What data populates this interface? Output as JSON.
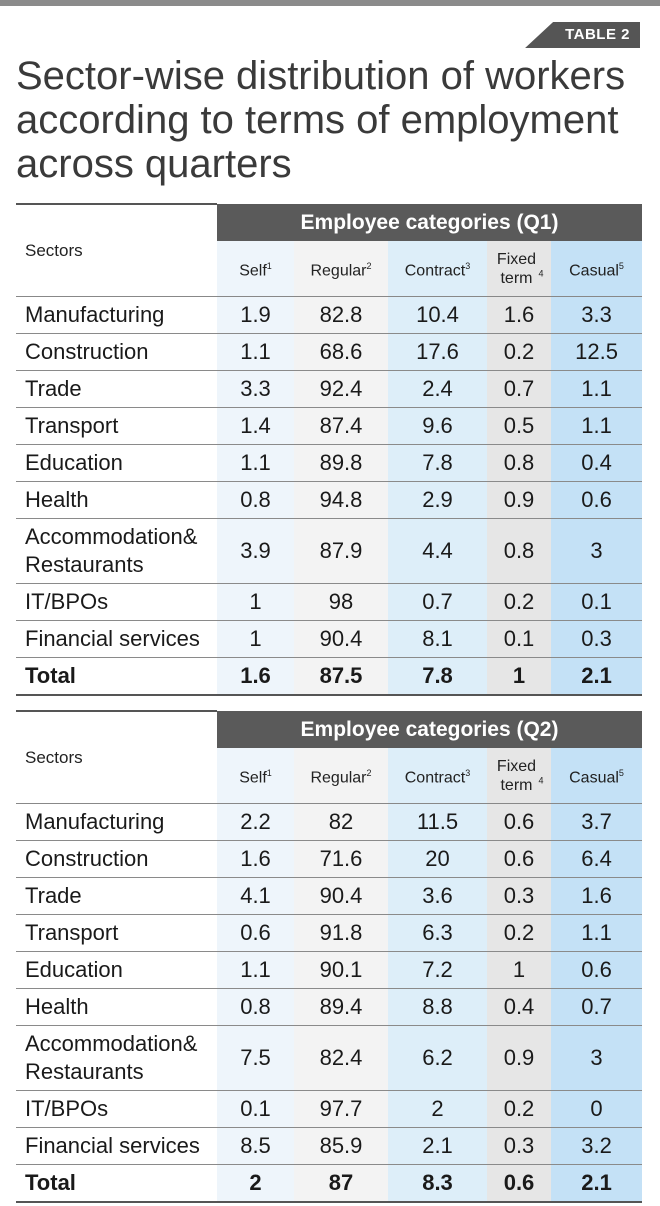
{
  "tag": "TABLE 2",
  "title": "Sector-wise distribution of workers according to terms of employment across quarters",
  "sectors_label": "Sectors",
  "columns": [
    {
      "label": "Self",
      "note": "1"
    },
    {
      "label": "Regular",
      "note": "2"
    },
    {
      "label": "Contract",
      "note": "3"
    },
    {
      "label": "Fixed term",
      "note": "4"
    },
    {
      "label": "Casual",
      "note": "5"
    }
  ],
  "tables": [
    {
      "heading": "Employee categories (Q1)",
      "rows": [
        {
          "sector": "Manufacturing",
          "values": [
            "1.9",
            "82.8",
            "10.4",
            "1.6",
            "3.3"
          ]
        },
        {
          "sector": "Construction",
          "values": [
            "1.1",
            "68.6",
            "17.6",
            "0.2",
            "12.5"
          ]
        },
        {
          "sector": "Trade",
          "values": [
            "3.3",
            "92.4",
            "2.4",
            "0.7",
            "1.1"
          ]
        },
        {
          "sector": "Transport",
          "values": [
            "1.4",
            "87.4",
            "9.6",
            "0.5",
            "1.1"
          ]
        },
        {
          "sector": "Education",
          "values": [
            "1.1",
            "89.8",
            "7.8",
            "0.8",
            "0.4"
          ]
        },
        {
          "sector": "Health",
          "values": [
            "0.8",
            "94.8",
            "2.9",
            "0.9",
            "0.6"
          ]
        },
        {
          "sector": "Accommodation& Restaurants",
          "values": [
            "3.9",
            "87.9",
            "4.4",
            "0.8",
            "3"
          ]
        },
        {
          "sector": "IT/BPOs",
          "values": [
            "1",
            "98",
            "0.7",
            "0.2",
            "0.1"
          ]
        },
        {
          "sector": "Financial services",
          "values": [
            "1",
            "90.4",
            "8.1",
            "0.1",
            "0.3"
          ]
        }
      ],
      "total": {
        "sector": "Total",
        "values": [
          "1.6",
          "87.5",
          "7.8",
          "1",
          "2.1"
        ]
      }
    },
    {
      "heading": "Employee categories (Q2)",
      "rows": [
        {
          "sector": "Manufacturing",
          "values": [
            "2.2",
            "82",
            "11.5",
            "0.6",
            "3.7"
          ]
        },
        {
          "sector": "Construction",
          "values": [
            "1.6",
            "71.6",
            "20",
            "0.6",
            "6.4"
          ]
        },
        {
          "sector": "Trade",
          "values": [
            "4.1",
            "90.4",
            "3.6",
            "0.3",
            "1.6"
          ]
        },
        {
          "sector": "Transport",
          "values": [
            "0.6",
            "91.8",
            "6.3",
            "0.2",
            "1.1"
          ]
        },
        {
          "sector": "Education",
          "values": [
            "1.1",
            "90.1",
            "7.2",
            "1",
            "0.6"
          ]
        },
        {
          "sector": "Health",
          "values": [
            "0.8",
            "89.4",
            "8.8",
            "0.4",
            "0.7"
          ]
        },
        {
          "sector": "Accommodation& Restaurants",
          "values": [
            "7.5",
            "82.4",
            "6.2",
            "0.9",
            "3"
          ]
        },
        {
          "sector": "IT/BPOs",
          "values": [
            "0.1",
            "97.7",
            "2",
            "0.2",
            "0"
          ]
        },
        {
          "sector": "Financial services",
          "values": [
            "8.5",
            "85.9",
            "2.1",
            "0.3",
            "3.2"
          ]
        }
      ],
      "total": {
        "sector": "Total",
        "values": [
          "2",
          "87",
          "8.3",
          "0.6",
          "2.1"
        ]
      }
    }
  ]
}
